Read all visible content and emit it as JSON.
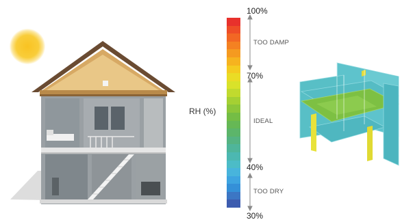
{
  "axis": {
    "label": "RH (%)"
  },
  "ticks": [
    {
      "name": "tick-100",
      "label": "100%"
    },
    {
      "name": "tick-70",
      "label": "70%"
    },
    {
      "name": "tick-40",
      "label": "40%"
    },
    {
      "name": "tick-30",
      "label": "30%"
    }
  ],
  "zones": [
    {
      "name": "zone-too-damp",
      "label": "TOO DAMP"
    },
    {
      "name": "zone-ideal",
      "label": "IDEAL"
    },
    {
      "name": "zone-too-dry",
      "label": "TOO DRY"
    }
  ],
  "scale": {
    "min": 30,
    "max": 100,
    "bands": [
      "#e8312c",
      "#ee4d27",
      "#f26724",
      "#f48122",
      "#f59a20",
      "#f6b31f",
      "#f4cb20",
      "#eadc25",
      "#d9e22a",
      "#c1da2e",
      "#a5d033",
      "#8cc63a",
      "#74bd45",
      "#66b855",
      "#5cb56a",
      "#55b382",
      "#4fb59a",
      "#4cb8b1",
      "#4cbcc7",
      "#48b4dc",
      "#3ea4e0",
      "#3490d8",
      "#3c76c4",
      "#3d5caf"
    ]
  },
  "colors": {
    "sun": "#f7c325",
    "roof": "#6a4b32",
    "wall_teal": "#5cc4cc",
    "wall_green": "#7cc142",
    "wall_yellow": "#e8e23a"
  }
}
